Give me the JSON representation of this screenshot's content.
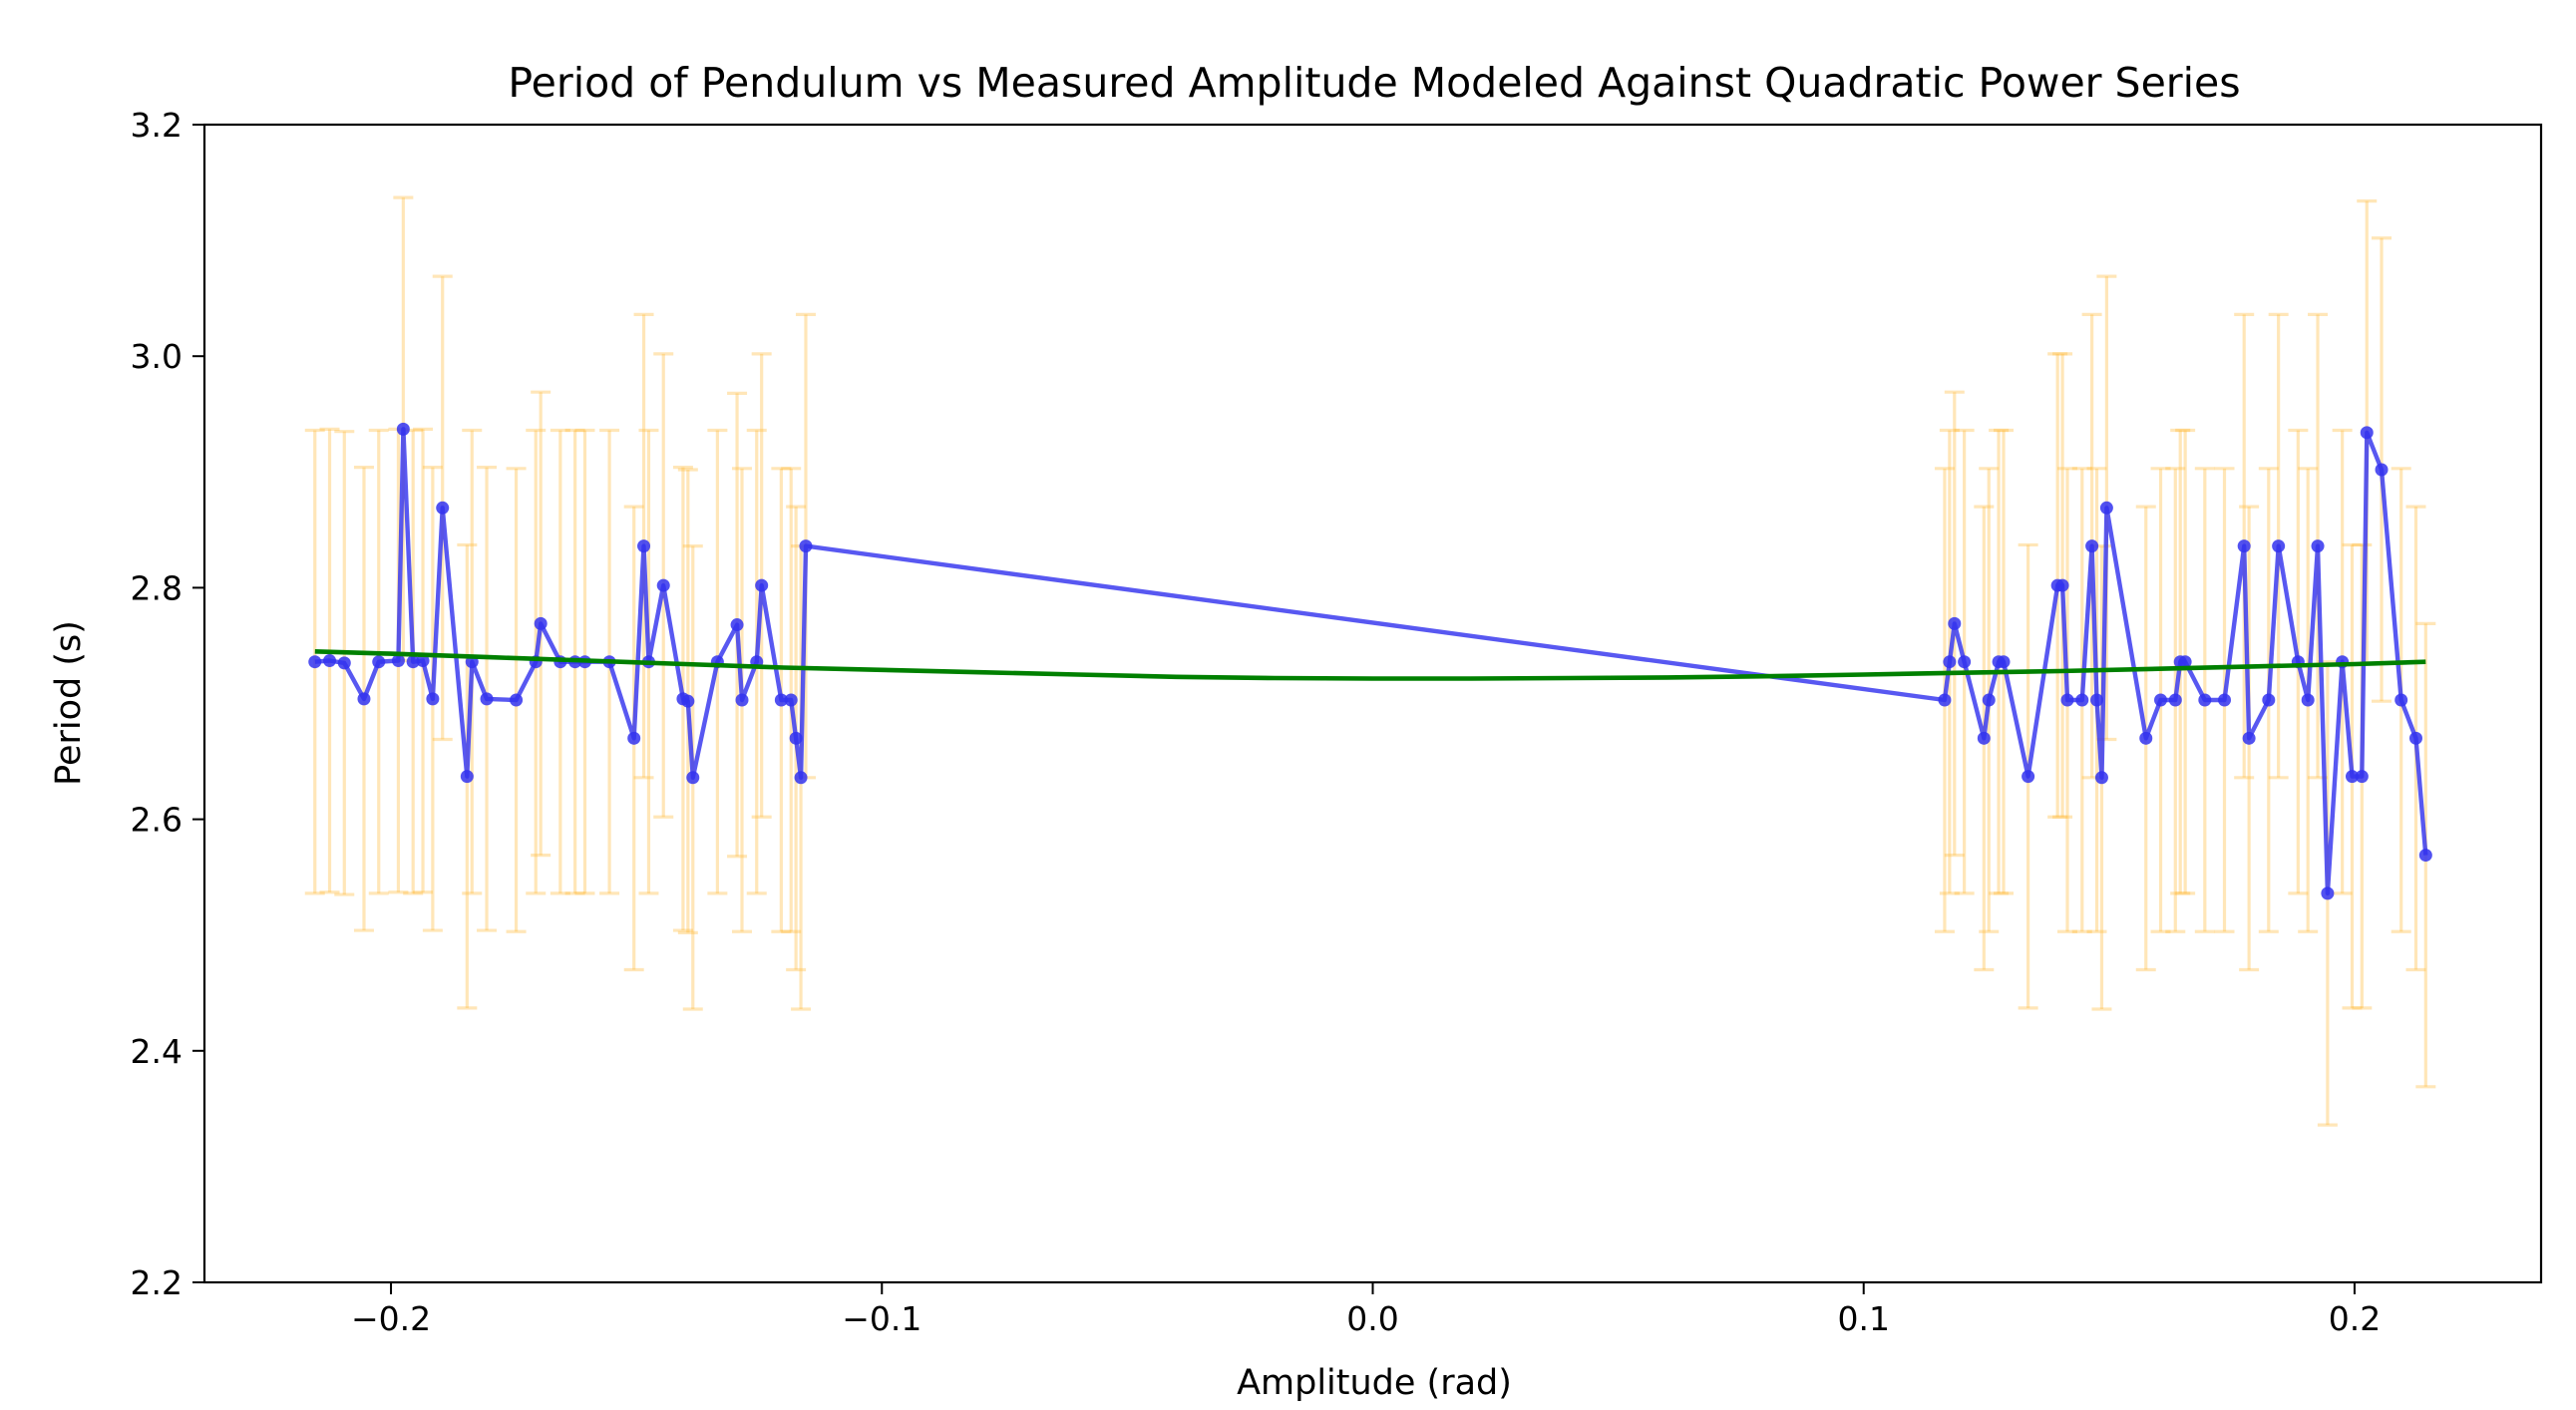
{
  "chart_data": {
    "type": "line",
    "title": "Period of Pendulum vs Measured Amplitude Modeled Against Quadratic Power Series",
    "xlabel": "Amplitude (rad)",
    "ylabel": "Period (s)",
    "xlim": [
      -0.238,
      0.238
    ],
    "ylim": [
      2.2,
      3.2
    ],
    "xticks": [
      -0.2,
      -0.1,
      0.0,
      0.1,
      0.2
    ],
    "xtick_labels": [
      "−0.2",
      "−0.1",
      "0.0",
      "0.1",
      "0.2"
    ],
    "yticks": [
      2.2,
      2.4,
      2.6,
      2.8,
      3.0,
      3.2
    ],
    "ytick_labels": [
      "2.2",
      "2.4",
      "2.6",
      "2.8",
      "3.0",
      "3.2"
    ],
    "grid": false,
    "colors": {
      "measured": "#3333ee",
      "errorbar": "#ffb733",
      "fit": "#008000"
    },
    "series": [
      {
        "kind": "errorbar-line",
        "x": [
          -0.2155,
          -0.2125,
          -0.2095,
          -0.2055,
          -0.2025,
          -0.1985,
          -0.1975,
          -0.1955,
          -0.1935,
          -0.1915,
          -0.1895,
          -0.1845,
          -0.1835,
          -0.1805,
          -0.1745,
          -0.1705,
          -0.1695,
          -0.1655,
          -0.1625,
          -0.1605,
          -0.1555,
          -0.1505,
          -0.1485,
          -0.1475,
          -0.1445,
          -0.1405,
          -0.1395,
          -0.1385,
          -0.1335,
          -0.1295,
          -0.1285,
          -0.1255,
          -0.1245,
          -0.1205,
          -0.1185,
          -0.1175,
          -0.1165,
          -0.1155,
          0.1165,
          0.1175,
          0.1185,
          0.1205,
          0.1245,
          0.1255,
          0.1275,
          0.1285,
          0.1335,
          0.1395,
          0.1405,
          0.1415,
          0.1445,
          0.1465,
          0.1475,
          0.1485,
          0.1495,
          0.1575,
          0.1605,
          0.1635,
          0.1645,
          0.1655,
          0.1695,
          0.1735,
          0.1775,
          0.1785,
          0.1825,
          0.1845,
          0.1885,
          0.1905,
          0.1925,
          0.1945,
          0.1975,
          0.1995,
          0.2015,
          0.2025,
          0.2055,
          0.2095,
          0.2125,
          0.2145
        ],
        "y": [
          2.736,
          2.737,
          2.735,
          2.704,
          2.736,
          2.737,
          2.937,
          2.736,
          2.737,
          2.704,
          2.869,
          2.637,
          2.736,
          2.704,
          2.703,
          2.736,
          2.769,
          2.736,
          2.736,
          2.736,
          2.736,
          2.67,
          2.836,
          2.736,
          2.802,
          2.704,
          2.702,
          2.636,
          2.736,
          2.768,
          2.703,
          2.736,
          2.802,
          2.703,
          2.703,
          2.67,
          2.636,
          2.836,
          2.703,
          2.736,
          2.769,
          2.736,
          2.67,
          2.703,
          2.736,
          2.736,
          2.637,
          2.802,
          2.802,
          2.703,
          2.703,
          2.836,
          2.703,
          2.636,
          2.869,
          2.67,
          2.703,
          2.703,
          2.736,
          2.736,
          2.703,
          2.703,
          2.836,
          2.67,
          2.703,
          2.836,
          2.736,
          2.703,
          2.836,
          2.536,
          2.736,
          2.637,
          2.637,
          2.934,
          2.902,
          2.703,
          2.67,
          2.569
        ],
        "yerr": [
          0.2,
          0.2,
          0.2,
          0.2,
          0.2,
          0.2,
          0.2,
          0.2,
          0.2,
          0.2,
          0.2,
          0.2,
          0.2,
          0.2,
          0.2,
          0.2,
          0.2,
          0.2,
          0.2,
          0.2,
          0.2,
          0.2,
          0.2,
          0.2,
          0.2,
          0.2,
          0.2,
          0.2,
          0.2,
          0.2,
          0.2,
          0.2,
          0.2,
          0.2,
          0.2,
          0.2,
          0.2,
          0.2,
          0.2,
          0.2,
          0.2,
          0.2,
          0.2,
          0.2,
          0.2,
          0.2,
          0.2,
          0.2,
          0.2,
          0.2,
          0.2,
          0.2,
          0.2,
          0.2,
          0.2,
          0.2,
          0.2,
          0.2,
          0.2,
          0.2,
          0.2,
          0.2,
          0.2,
          0.2,
          0.2,
          0.2,
          0.2,
          0.2,
          0.2,
          0.2,
          0.2,
          0.2,
          0.2,
          0.2,
          0.2,
          0.2,
          0.2,
          0.2
        ]
      },
      {
        "kind": "fit-curve",
        "x": [
          -0.2155,
          -0.2,
          -0.18,
          -0.16,
          -0.14,
          -0.12,
          -0.1,
          -0.08,
          -0.06,
          -0.04,
          -0.02,
          0.0,
          0.02,
          0.04,
          0.06,
          0.08,
          0.1,
          0.12,
          0.14,
          0.16,
          0.18,
          0.2,
          0.2145
        ],
        "y": [
          2.745,
          2.743,
          2.74,
          2.737,
          2.734,
          2.731,
          2.729,
          2.727,
          2.725,
          2.723,
          2.722,
          2.7215,
          2.7215,
          2.722,
          2.7225,
          2.7235,
          2.725,
          2.7265,
          2.728,
          2.73,
          2.732,
          2.734,
          2.736
        ]
      }
    ]
  }
}
